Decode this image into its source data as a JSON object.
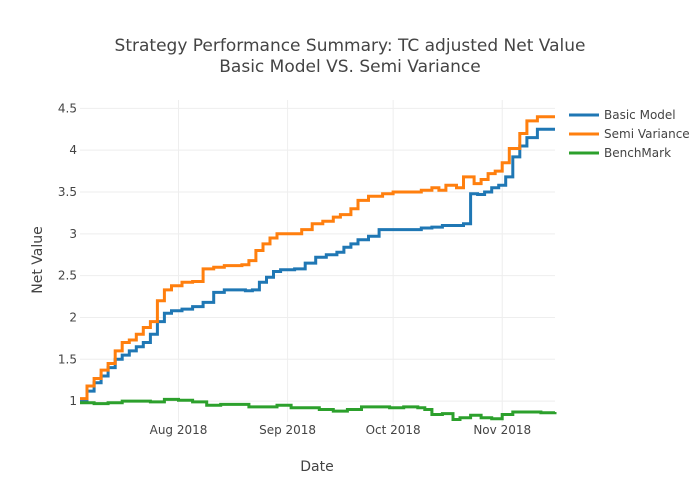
{
  "chart_data": {
    "type": "line",
    "title": "Strategy Performance Summary: TC adjusted Net Value",
    "subtitle": "Basic Model VS. Semi Variance",
    "xlabel": "Date",
    "ylabel": "Net Value",
    "xlim": [
      "2018-07-04",
      "2018-11-16"
    ],
    "ylim": [
      0.75,
      4.6
    ],
    "x_ticks": [
      {
        "date": "2018-08-01",
        "label": "Aug 2018"
      },
      {
        "date": "2018-09-01",
        "label": "Sep 2018"
      },
      {
        "date": "2018-10-01",
        "label": "Oct 2018"
      },
      {
        "date": "2018-11-01",
        "label": "Nov 2018"
      }
    ],
    "y_ticks": [
      {
        "value": 1,
        "label": "1"
      },
      {
        "value": 1.5,
        "label": "1.5"
      },
      {
        "value": 2,
        "label": "2"
      },
      {
        "value": 2.5,
        "label": "2.5"
      },
      {
        "value": 3,
        "label": "3"
      },
      {
        "value": 3.5,
        "label": "3.5"
      },
      {
        "value": 4,
        "label": "4"
      },
      {
        "value": 4.5,
        "label": "4.5"
      }
    ],
    "grid": true,
    "legend_position": "top-right",
    "series": [
      {
        "name": "Basic Model",
        "color": "#1f77b4",
        "points": [
          [
            "2018-07-04",
            1.0
          ],
          [
            "2018-07-06",
            1.12
          ],
          [
            "2018-07-08",
            1.22
          ],
          [
            "2018-07-10",
            1.3
          ],
          [
            "2018-07-12",
            1.4
          ],
          [
            "2018-07-14",
            1.5
          ],
          [
            "2018-07-16",
            1.55
          ],
          [
            "2018-07-18",
            1.6
          ],
          [
            "2018-07-20",
            1.65
          ],
          [
            "2018-07-22",
            1.7
          ],
          [
            "2018-07-24",
            1.8
          ],
          [
            "2018-07-26",
            1.95
          ],
          [
            "2018-07-28",
            2.05
          ],
          [
            "2018-07-30",
            2.08
          ],
          [
            "2018-08-02",
            2.1
          ],
          [
            "2018-08-05",
            2.13
          ],
          [
            "2018-08-08",
            2.18
          ],
          [
            "2018-08-11",
            2.3
          ],
          [
            "2018-08-14",
            2.33
          ],
          [
            "2018-08-17",
            2.33
          ],
          [
            "2018-08-20",
            2.32
          ],
          [
            "2018-08-22",
            2.33
          ],
          [
            "2018-08-24",
            2.42
          ],
          [
            "2018-08-26",
            2.48
          ],
          [
            "2018-08-28",
            2.55
          ],
          [
            "2018-08-30",
            2.57
          ],
          [
            "2018-09-03",
            2.58
          ],
          [
            "2018-09-06",
            2.65
          ],
          [
            "2018-09-09",
            2.72
          ],
          [
            "2018-09-12",
            2.75
          ],
          [
            "2018-09-15",
            2.78
          ],
          [
            "2018-09-17",
            2.84
          ],
          [
            "2018-09-19",
            2.88
          ],
          [
            "2018-09-21",
            2.93
          ],
          [
            "2018-09-24",
            2.97
          ],
          [
            "2018-09-27",
            3.05
          ],
          [
            "2018-10-01",
            3.05
          ],
          [
            "2018-10-05",
            3.05
          ],
          [
            "2018-10-09",
            3.07
          ],
          [
            "2018-10-12",
            3.08
          ],
          [
            "2018-10-15",
            3.1
          ],
          [
            "2018-10-18",
            3.1
          ],
          [
            "2018-10-21",
            3.12
          ],
          [
            "2018-10-23",
            3.18
          ],
          [
            "2018-10-23",
            3.48
          ],
          [
            "2018-10-25",
            3.47
          ],
          [
            "2018-10-27",
            3.5
          ],
          [
            "2018-10-29",
            3.55
          ],
          [
            "2018-10-31",
            3.58
          ],
          [
            "2018-11-02",
            3.68
          ],
          [
            "2018-11-04",
            3.92
          ],
          [
            "2018-11-06",
            4.05
          ],
          [
            "2018-11-08",
            4.15
          ],
          [
            "2018-11-11",
            4.25
          ],
          [
            "2018-11-16",
            4.25
          ]
        ]
      },
      {
        "name": "Semi Variance",
        "color": "#ff7f0e",
        "points": [
          [
            "2018-07-04",
            1.03
          ],
          [
            "2018-07-06",
            1.18
          ],
          [
            "2018-07-08",
            1.27
          ],
          [
            "2018-07-10",
            1.37
          ],
          [
            "2018-07-12",
            1.45
          ],
          [
            "2018-07-14",
            1.6
          ],
          [
            "2018-07-16",
            1.7
          ],
          [
            "2018-07-18",
            1.73
          ],
          [
            "2018-07-20",
            1.8
          ],
          [
            "2018-07-22",
            1.88
          ],
          [
            "2018-07-24",
            1.95
          ],
          [
            "2018-07-26",
            2.2
          ],
          [
            "2018-07-28",
            2.33
          ],
          [
            "2018-07-30",
            2.38
          ],
          [
            "2018-08-02",
            2.42
          ],
          [
            "2018-08-05",
            2.43
          ],
          [
            "2018-08-08",
            2.58
          ],
          [
            "2018-08-11",
            2.6
          ],
          [
            "2018-08-14",
            2.62
          ],
          [
            "2018-08-17",
            2.62
          ],
          [
            "2018-08-19",
            2.63
          ],
          [
            "2018-08-21",
            2.68
          ],
          [
            "2018-08-23",
            2.8
          ],
          [
            "2018-08-25",
            2.88
          ],
          [
            "2018-08-27",
            2.95
          ],
          [
            "2018-08-29",
            3.0
          ],
          [
            "2018-09-02",
            3.0
          ],
          [
            "2018-09-05",
            3.05
          ],
          [
            "2018-09-08",
            3.12
          ],
          [
            "2018-09-11",
            3.15
          ],
          [
            "2018-09-14",
            3.2
          ],
          [
            "2018-09-16",
            3.23
          ],
          [
            "2018-09-19",
            3.3
          ],
          [
            "2018-09-21",
            3.4
          ],
          [
            "2018-09-24",
            3.45
          ],
          [
            "2018-09-28",
            3.48
          ],
          [
            "2018-10-01",
            3.5
          ],
          [
            "2018-10-05",
            3.5
          ],
          [
            "2018-10-09",
            3.52
          ],
          [
            "2018-10-12",
            3.55
          ],
          [
            "2018-10-14",
            3.52
          ],
          [
            "2018-10-16",
            3.58
          ],
          [
            "2018-10-19",
            3.55
          ],
          [
            "2018-10-21",
            3.68
          ],
          [
            "2018-10-24",
            3.6
          ],
          [
            "2018-10-26",
            3.65
          ],
          [
            "2018-10-28",
            3.72
          ],
          [
            "2018-10-30",
            3.75
          ],
          [
            "2018-11-01",
            3.85
          ],
          [
            "2018-11-03",
            4.02
          ],
          [
            "2018-11-06",
            4.2
          ],
          [
            "2018-11-08",
            4.35
          ],
          [
            "2018-11-11",
            4.4
          ],
          [
            "2018-11-16",
            4.4
          ]
        ]
      },
      {
        "name": "BenchMark",
        "color": "#2ca02c",
        "points": [
          [
            "2018-07-04",
            0.98
          ],
          [
            "2018-07-08",
            0.97
          ],
          [
            "2018-07-12",
            0.98
          ],
          [
            "2018-07-16",
            1.0
          ],
          [
            "2018-07-20",
            1.0
          ],
          [
            "2018-07-24",
            0.99
          ],
          [
            "2018-07-28",
            1.02
          ],
          [
            "2018-08-01",
            1.01
          ],
          [
            "2018-08-05",
            0.99
          ],
          [
            "2018-08-09",
            0.95
          ],
          [
            "2018-08-13",
            0.96
          ],
          [
            "2018-08-17",
            0.96
          ],
          [
            "2018-08-21",
            0.93
          ],
          [
            "2018-08-25",
            0.93
          ],
          [
            "2018-08-29",
            0.95
          ],
          [
            "2018-09-02",
            0.92
          ],
          [
            "2018-09-06",
            0.92
          ],
          [
            "2018-09-10",
            0.9
          ],
          [
            "2018-09-14",
            0.88
          ],
          [
            "2018-09-18",
            0.9
          ],
          [
            "2018-09-22",
            0.93
          ],
          [
            "2018-09-26",
            0.93
          ],
          [
            "2018-09-30",
            0.92
          ],
          [
            "2018-10-04",
            0.93
          ],
          [
            "2018-10-08",
            0.92
          ],
          [
            "2018-10-10",
            0.9
          ],
          [
            "2018-10-12",
            0.84
          ],
          [
            "2018-10-15",
            0.85
          ],
          [
            "2018-10-18",
            0.78
          ],
          [
            "2018-10-20",
            0.8
          ],
          [
            "2018-10-23",
            0.83
          ],
          [
            "2018-10-26",
            0.8
          ],
          [
            "2018-10-29",
            0.79
          ],
          [
            "2018-11-01",
            0.84
          ],
          [
            "2018-11-04",
            0.87
          ],
          [
            "2018-11-08",
            0.87
          ],
          [
            "2018-11-12",
            0.86
          ],
          [
            "2018-11-16",
            0.87
          ]
        ]
      }
    ]
  }
}
